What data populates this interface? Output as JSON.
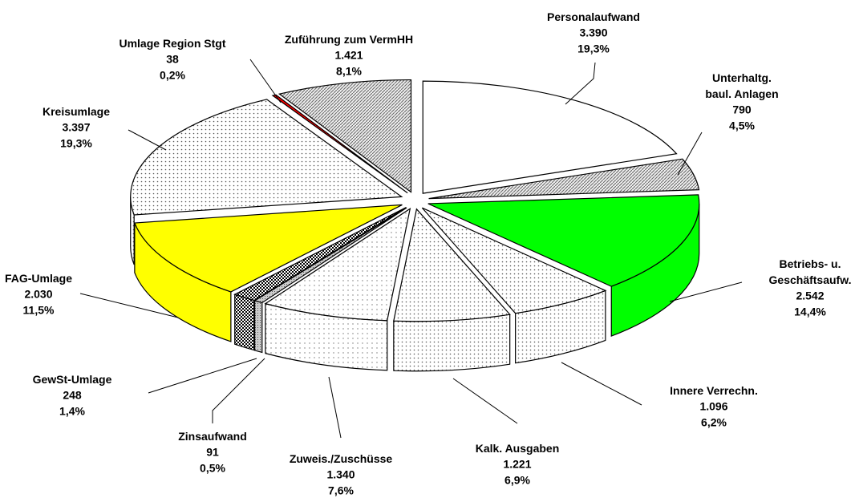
{
  "chart_data": {
    "type": "pie3d",
    "categories": [
      "Personalaufwand",
      "Unterhaltg.\nbaul. Anlagen",
      "Betriebs- u.\nGeschäftsaufw.",
      "Innere Verrechn.",
      "Kalk. Ausgaben",
      "Zuweis./Zuschüsse",
      "Zinsaufwand",
      "GewSt-Umlage",
      "FAG-Umlage",
      "Kreisumlage",
      "Umlage Region Stgt",
      "Zuführung zum VermHH"
    ],
    "values": [
      3390,
      790,
      2542,
      1096,
      1221,
      1340,
      91,
      248,
      2030,
      3397,
      38,
      1421
    ],
    "value_labels": [
      "3.390",
      "790",
      "2.542",
      "1.096",
      "1.221",
      "1.340",
      "91",
      "248",
      "2.030",
      "3.397",
      "38",
      "1.421"
    ],
    "percent_labels": [
      "19,3%",
      "4,5%",
      "14,4%",
      "6,2%",
      "6,9%",
      "7,6%",
      "0,5%",
      "1,4%",
      "11,5%",
      "19,3%",
      "0,2%",
      "8,1%"
    ],
    "colors": [
      "#ffffff",
      "url(#hatch)",
      "#00ff00",
      "url(#dots)",
      "url(#dots)",
      "url(#dotsLight)",
      "url(#grey)",
      "url(#checker)",
      "#ffff00",
      "url(#dots)",
      "#ff0000",
      "url(#hatch)"
    ]
  }
}
